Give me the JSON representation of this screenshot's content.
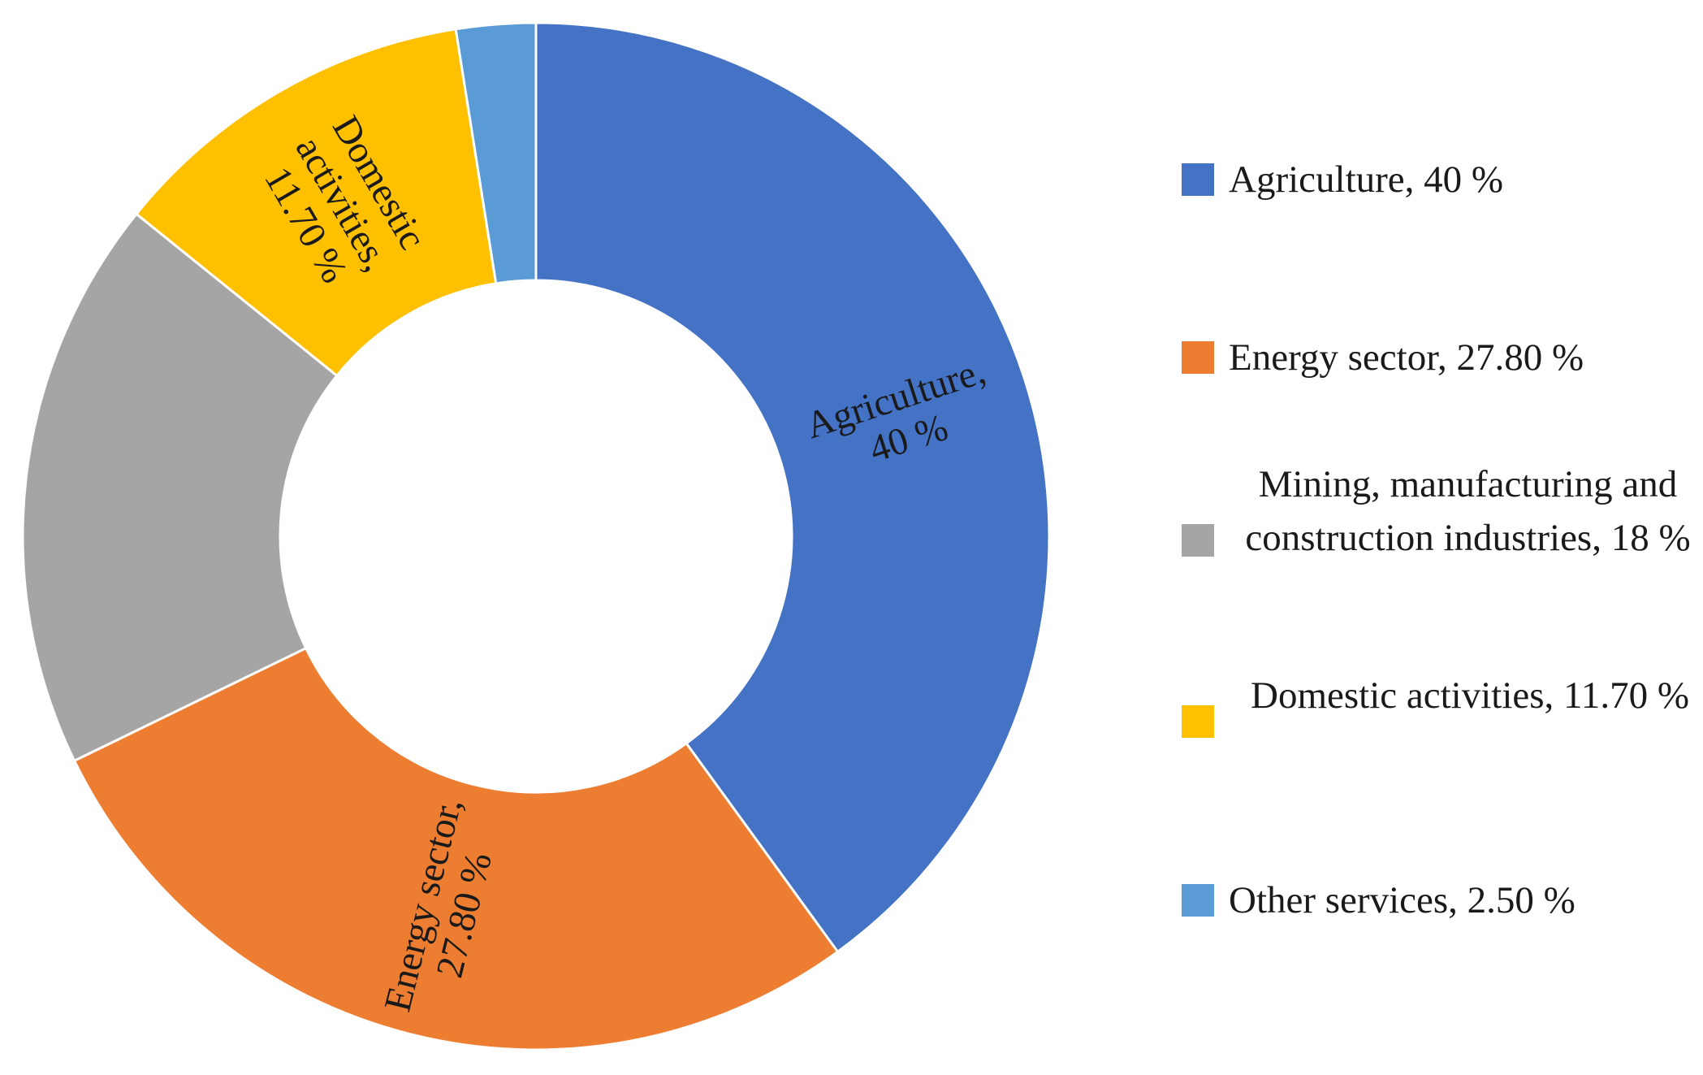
{
  "chart_data": {
    "type": "pie",
    "subtype": "donut",
    "title": "",
    "categories": [
      "Agriculture",
      "Energy sector",
      "Mining, manufacturing and construction industries",
      "Domestic activities",
      "Other services"
    ],
    "values": [
      40,
      27.8,
      18,
      11.7,
      2.5
    ],
    "unit": "%",
    "colors": [
      "#4472C4",
      "#ED7D31",
      "#A5A5A5",
      "#FFC000",
      "#5B9BD5"
    ],
    "start_angle": "12 o'clock",
    "direction": "clockwise",
    "data_labels": [
      {
        "category": "Agriculture",
        "lines": [
          "Agriculture,",
          "40 %"
        ]
      },
      {
        "category": "Energy sector",
        "lines": [
          "Energy sector,",
          "27.80 %"
        ]
      },
      {
        "category": "Domestic activities",
        "lines": [
          "Domestic",
          "activities,",
          "11.70 %"
        ]
      }
    ],
    "legend": {
      "position": "right",
      "entries": [
        "Agriculture, 40 %",
        "Energy sector, 27.80 %",
        "Mining, manufacturing and construction industries, 18 %",
        "Domestic activities, 11.70 %",
        "Other services, 2.50 %"
      ]
    }
  }
}
